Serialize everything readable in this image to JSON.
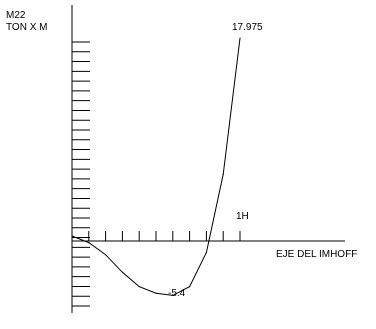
{
  "chart_data": {
    "type": "line",
    "y_label_line1": "M22",
    "y_label_line2": "TON X M",
    "x_axis_label": "EJE DEL IMHOFF",
    "x_end_label": "1H",
    "max_label": "17.975",
    "min_label": "-5.4",
    "xlim": [
      0,
      1
    ],
    "ylim": [
      -7,
      21
    ],
    "x_tick_count": 10,
    "y_tick_count": 28,
    "grid": false,
    "series": [
      {
        "x": [
          0.0,
          0.1,
          0.2,
          0.3,
          0.4,
          0.5,
          0.6,
          0.7,
          0.8,
          0.9,
          1.0
        ],
        "y": [
          0.0,
          -0.6,
          -1.7,
          -3.3,
          -4.6,
          -5.2,
          -5.4,
          -4.6,
          -1.5,
          5.6,
          17.975
        ]
      }
    ]
  }
}
